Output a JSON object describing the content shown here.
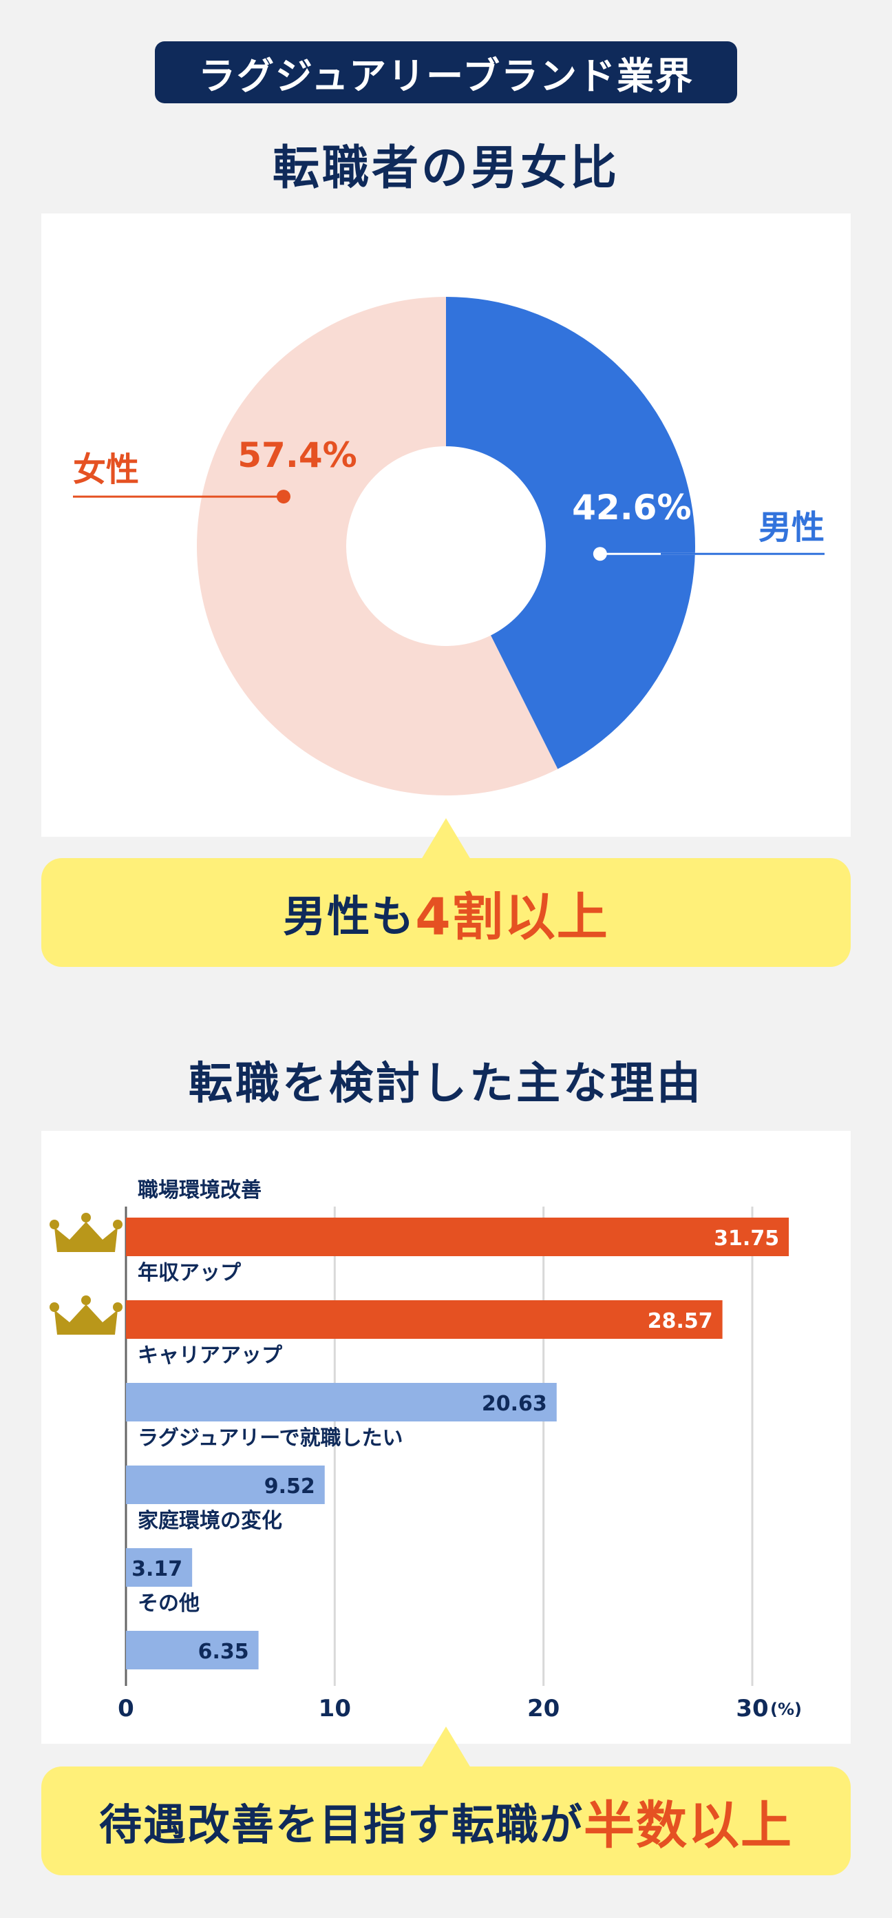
{
  "header": {
    "badge": "ラグジュアリーブランド業界",
    "title1": "転職者の男女比",
    "title2": "転職を検討した主な理由"
  },
  "callouts": {
    "first_pre": "男性も",
    "first_hl": "4割以上",
    "second_pre": "待遇改善を目指す転職が",
    "second_hl": "半数以上"
  },
  "colors": {
    "navy": "#0f2a5a",
    "orange": "#e55122",
    "blue": "#3273dc",
    "pink": "#f9dcd4",
    "lightblue": "#91b2e6",
    "yellow": "#fff079",
    "crown": "#b9971a"
  },
  "chart_data": [
    {
      "type": "pie",
      "donut": true,
      "slices": [
        {
          "label": "男性",
          "value": 42.6,
          "value_label": "42.6%",
          "color": "#3273dc"
        },
        {
          "label": "女性",
          "value": 57.4,
          "value_label": "57.4%",
          "color": "#f9dcd4"
        }
      ]
    },
    {
      "type": "bar",
      "orientation": "horizontal",
      "categories": [
        "職場環境改善",
        "年収アップ",
        "キャリアアップ",
        "ラグジュアリーで就職したい",
        "家庭環境の変化",
        "その他"
      ],
      "values": [
        31.75,
        28.57,
        20.63,
        9.52,
        3.17,
        6.35
      ],
      "value_labels": [
        "31.75",
        "28.57",
        "20.63",
        "9.52",
        "3.17",
        "6.35"
      ],
      "highlight_top": 2,
      "xlim": [
        0,
        33
      ],
      "xticks": [
        0,
        10,
        20,
        30
      ],
      "xtick_labels": [
        "0",
        "10",
        "20",
        "30"
      ],
      "unit": "(%)",
      "grid": true
    }
  ]
}
